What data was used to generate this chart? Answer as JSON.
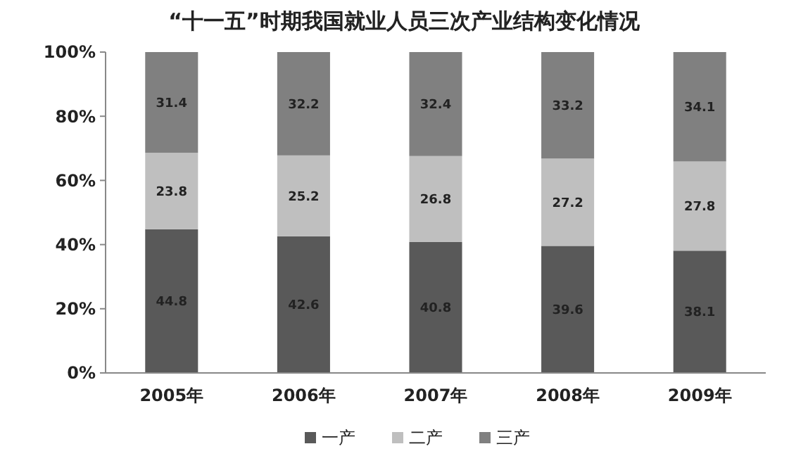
{
  "chart_data": {
    "type": "bar",
    "title": "“十一五”时期我国就业人员三次产业结构变化情况",
    "categories": [
      "2005年",
      "2006年",
      "2007年",
      "2008年",
      "2009年"
    ],
    "series": [
      {
        "name": "一产",
        "color": "#595959",
        "values": [
          44.8,
          42.6,
          40.8,
          39.6,
          38.1
        ]
      },
      {
        "name": "二产",
        "color": "#bfbfbf",
        "values": [
          23.8,
          25.2,
          26.8,
          27.2,
          27.8
        ]
      },
      {
        "name": "三产",
        "color": "#808080",
        "values": [
          31.4,
          32.2,
          32.4,
          33.2,
          34.1
        ]
      }
    ],
    "stacked": true,
    "ylim": [
      0,
      100
    ],
    "yticks": [
      {
        "value": 0,
        "label": "0%"
      },
      {
        "value": 20,
        "label": "20%"
      },
      {
        "value": 40,
        "label": "40%"
      },
      {
        "value": 60,
        "label": "60%"
      },
      {
        "value": 80,
        "label": "80%"
      },
      {
        "value": 100,
        "label": "100%"
      }
    ],
    "data_labels": true,
    "legend": "bottom",
    "grid": false
  }
}
